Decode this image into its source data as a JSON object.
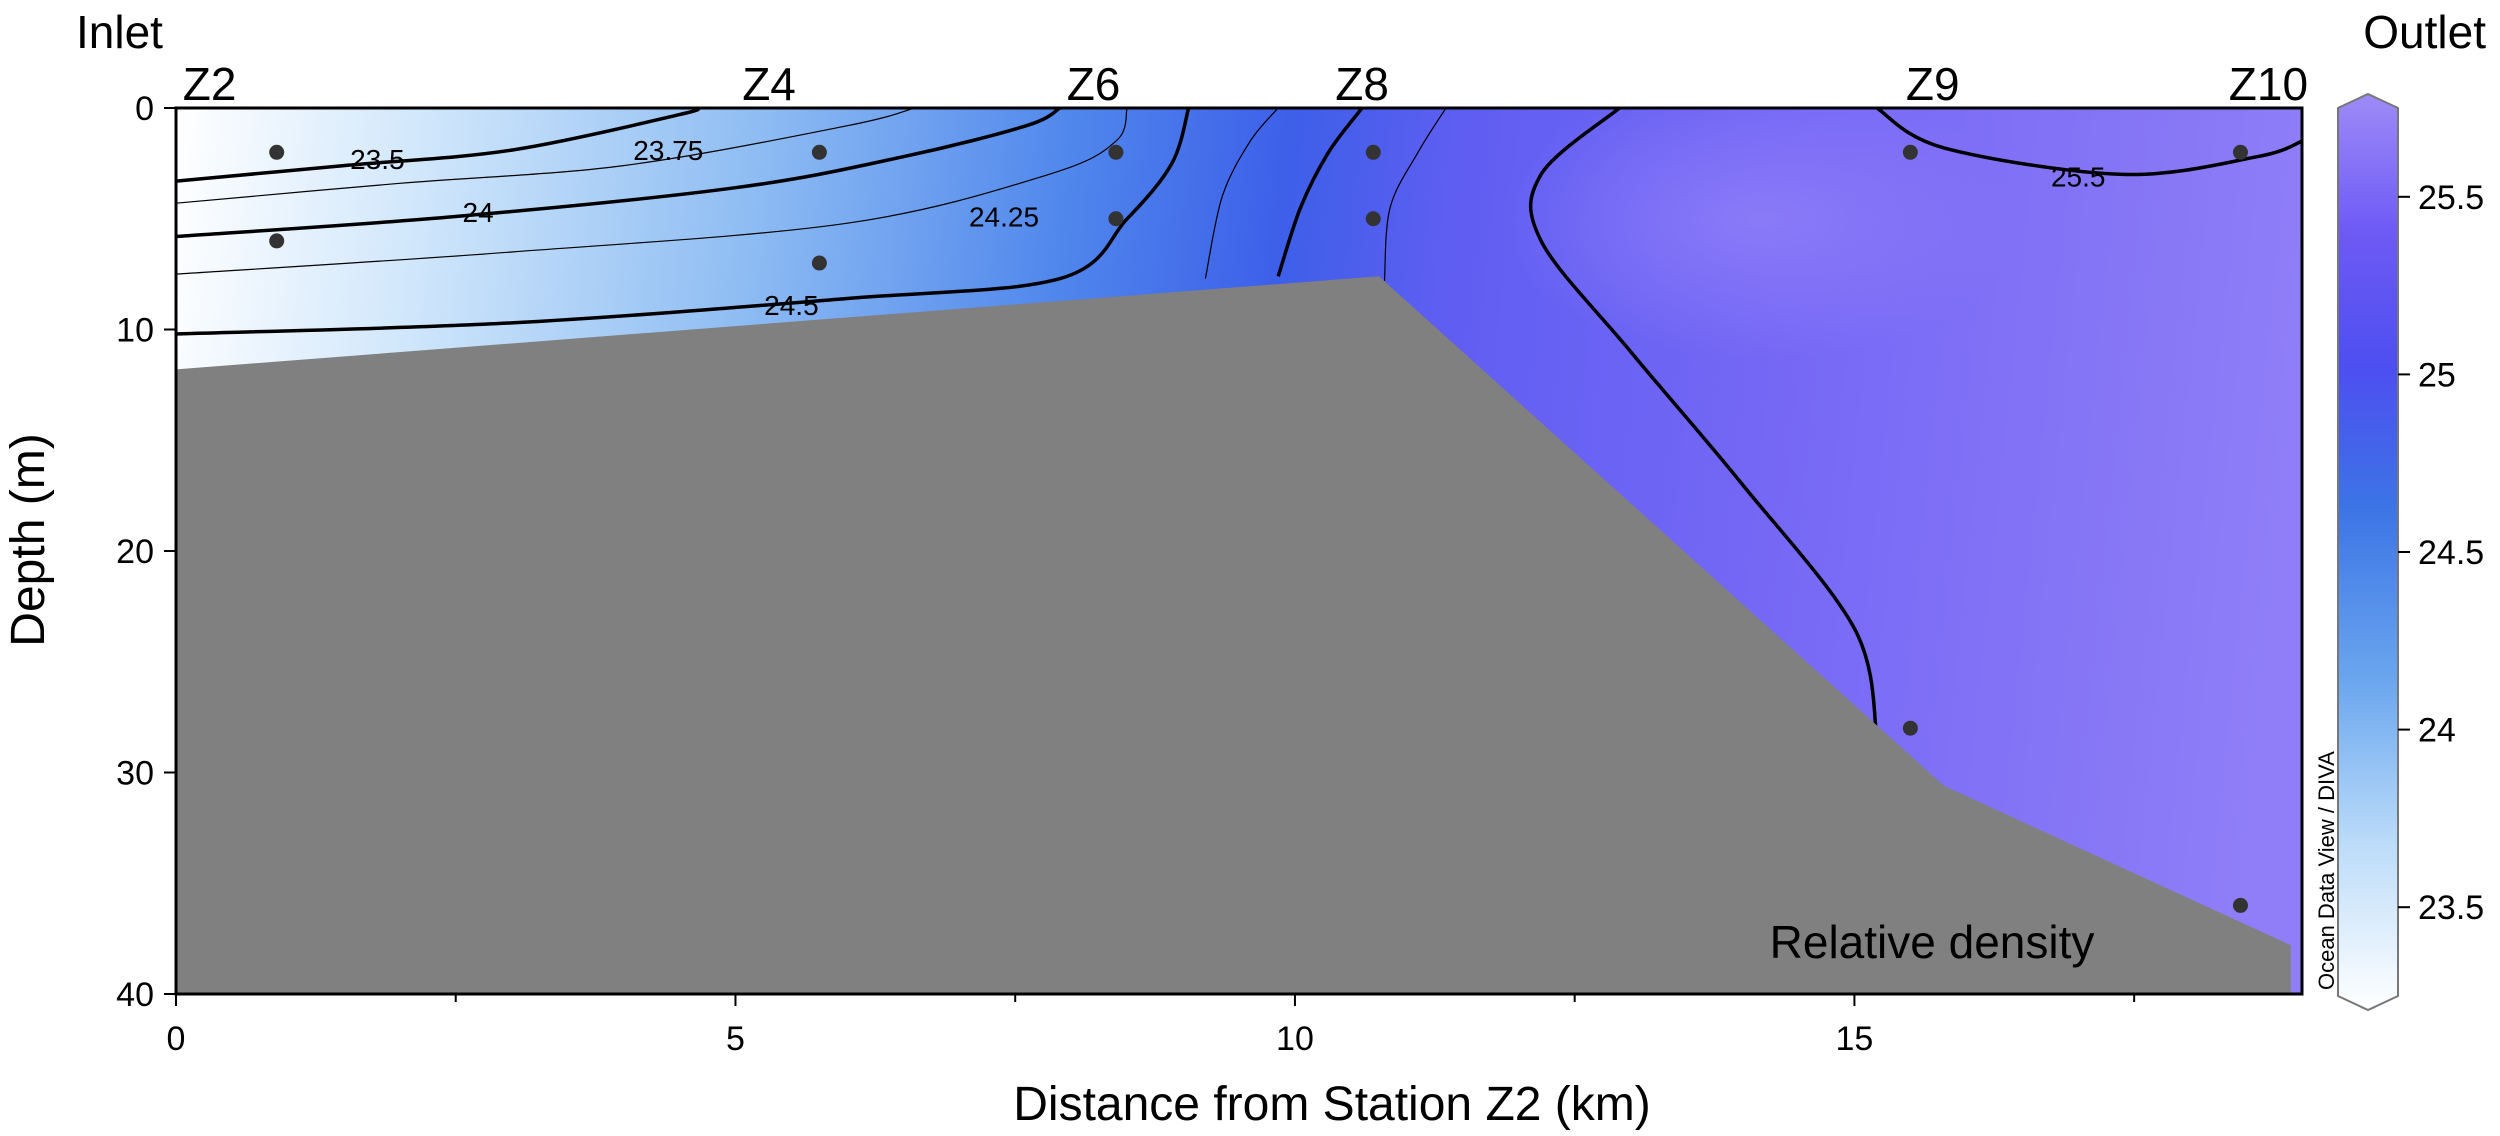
{
  "chart_data": {
    "type": "contour",
    "title": "",
    "panel_label": "Relative density",
    "xlabel": "Distance from Station Z2 (km)",
    "ylabel": "Depth (m)",
    "xlim": [
      0,
      19
    ],
    "ylim": [
      40,
      0
    ],
    "x_ticks": [
      "0",
      "5",
      "10",
      "15"
    ],
    "y_ticks": [
      "0",
      "10",
      "20",
      "30",
      "40"
    ],
    "inlet_label": "Inlet",
    "outlet_label": "Outlet",
    "credit": "Ocean Data View / DIVA",
    "stations": [
      {
        "name": "Z2",
        "x": 0.3
      },
      {
        "name": "Z4",
        "x": 5.3
      },
      {
        "name": "Z6",
        "x": 8.2
      },
      {
        "name": "Z8",
        "x": 10.6
      },
      {
        "name": "Z9",
        "x": 15.7
      },
      {
        "name": "Z10",
        "x": 18.7
      }
    ],
    "samples": [
      {
        "x": 0.9,
        "depth": 2
      },
      {
        "x": 0.9,
        "depth": 6
      },
      {
        "x": 5.75,
        "depth": 2
      },
      {
        "x": 5.75,
        "depth": 7
      },
      {
        "x": 8.4,
        "depth": 2
      },
      {
        "x": 8.4,
        "depth": 5
      },
      {
        "x": 10.7,
        "depth": 2
      },
      {
        "x": 10.7,
        "depth": 5
      },
      {
        "x": 15.5,
        "depth": 2
      },
      {
        "x": 15.5,
        "depth": 28
      },
      {
        "x": 18.45,
        "depth": 2
      },
      {
        "x": 18.45,
        "depth": 36
      }
    ],
    "contours": [
      {
        "level": 23.5,
        "bold": true,
        "label": "23.5",
        "points": [
          [
            0,
            3.3
          ],
          [
            1.5,
            2.6
          ],
          [
            3,
            1.9
          ],
          [
            4.5,
            0.3
          ],
          [
            4.65,
            0
          ]
        ],
        "label_at": [
          1.8,
          2.3
        ]
      },
      {
        "level": 23.75,
        "bold": false,
        "label": "23.75",
        "points": [
          [
            0,
            4.3
          ],
          [
            2,
            3.4
          ],
          [
            4,
            2.6
          ],
          [
            6,
            0.8
          ],
          [
            6.6,
            0
          ]
        ],
        "label_at": [
          4.4,
          1.9
        ]
      },
      {
        "level": 24,
        "bold": true,
        "label": "24",
        "points": [
          [
            0,
            5.8
          ],
          [
            2.5,
            4.9
          ],
          [
            5,
            3.6
          ],
          [
            6.5,
            2.2
          ],
          [
            7.6,
            0.8
          ],
          [
            7.9,
            0
          ]
        ],
        "label_at": [
          2.7,
          4.7
        ]
      },
      {
        "level": 24.25,
        "bold": false,
        "label": "24.25",
        "points": [
          [
            0,
            7.5
          ],
          [
            3,
            6.5
          ],
          [
            6,
            5.2
          ],
          [
            7.8,
            3
          ],
          [
            8.4,
            1.5
          ],
          [
            8.5,
            0
          ]
        ],
        "label_at": [
          7.4,
          4.9
        ]
      },
      {
        "level": 24.5,
        "bold": true,
        "label": "24.5",
        "points": [
          [
            0,
            10.2
          ],
          [
            3,
            9.7
          ],
          [
            6,
            8.6
          ],
          [
            7.9,
            7.7
          ],
          [
            8.5,
            5
          ],
          [
            8.9,
            2.5
          ],
          [
            9.05,
            0
          ]
        ],
        "label_at": [
          5.5,
          8.9
        ]
      },
      {
        "level": 24.75,
        "bold": false,
        "label": "",
        "points": [
          [
            9.2,
            7.7
          ],
          [
            9.35,
            4
          ],
          [
            9.6,
            1.5
          ],
          [
            9.85,
            0
          ]
        ],
        "label_at": null
      },
      {
        "level": 25,
        "bold": true,
        "label": "",
        "points": [
          [
            9.85,
            7.6
          ],
          [
            10.05,
            4.5
          ],
          [
            10.3,
            2
          ],
          [
            10.6,
            0
          ]
        ],
        "label_at": null
      },
      {
        "level": 25.25,
        "bold": false,
        "label": "",
        "points": [
          [
            10.8,
            7.8
          ],
          [
            10.85,
            4.5
          ],
          [
            11.1,
            2
          ],
          [
            11.35,
            0
          ]
        ],
        "label_at": null
      },
      {
        "level": 25.5,
        "bold": true,
        "label": "",
        "points": [
          [
            12.9,
            0
          ],
          [
            12.2,
            3
          ],
          [
            12.2,
            6
          ],
          [
            13,
            11
          ],
          [
            14,
            17
          ],
          [
            15,
            23.5
          ],
          [
            15.2,
            28.3
          ]
        ],
        "label_at": null
      },
      {
        "level": 25.5,
        "bold": true,
        "label": "25.5",
        "points": [
          [
            15.2,
            0
          ],
          [
            15.8,
            1.8
          ],
          [
            17.4,
            3
          ],
          [
            18.6,
            2.2
          ],
          [
            19,
            1.5
          ]
        ],
        "label_at": [
          17,
          3.1
        ]
      }
    ],
    "bathymetry": [
      [
        0,
        11.8
      ],
      [
        10.75,
        7.6
      ],
      [
        15.8,
        30.6
      ],
      [
        18.9,
        37.8
      ],
      [
        18.9,
        40
      ],
      [
        0,
        40
      ]
    ],
    "colorbar": {
      "min": 23.25,
      "max": 25.75,
      "ticks": [
        "23.5",
        "24",
        "24.5",
        "25",
        "25.5"
      ],
      "colors": [
        "#ffffff",
        "#bcdcf9",
        "#6aa6ee",
        "#3c74e6",
        "#4d4ff0",
        "#6e5af5",
        "#9e8bf7"
      ]
    }
  }
}
